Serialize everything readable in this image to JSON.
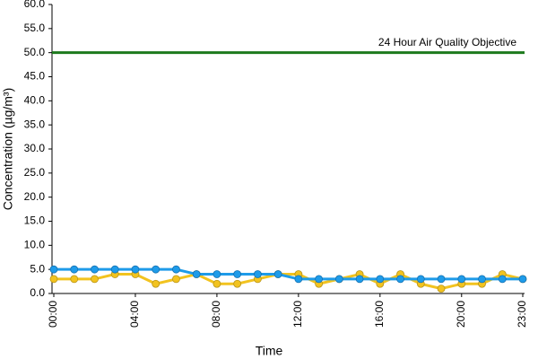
{
  "chart_data": {
    "type": "line",
    "xlabel": "Time",
    "ylabel": "Concentration (µg/m³)",
    "categories": [
      "00:00",
      null,
      null,
      null,
      "04:00",
      null,
      null,
      null,
      "08:00",
      null,
      null,
      null,
      "12:00",
      null,
      null,
      null,
      "16:00",
      null,
      null,
      null,
      "20:00",
      null,
      null,
      "23:00"
    ],
    "series": [
      {
        "color": "#f2c31f",
        "values": [
          3,
          3,
          3,
          4,
          4,
          2,
          3,
          4,
          2,
          2,
          3,
          4,
          4,
          2,
          3,
          4,
          2,
          4,
          2,
          1,
          2,
          2,
          4,
          3
        ]
      },
      {
        "color": "#1e9be9",
        "values": [
          5,
          5,
          5,
          5,
          5,
          5,
          5,
          4,
          4,
          4,
          4,
          4,
          3,
          3,
          3,
          3,
          3,
          3,
          3,
          3,
          3,
          3,
          3,
          3
        ]
      }
    ],
    "objective": {
      "value": 50,
      "label": "24 Hour Air Quality Objective",
      "color": "#1d7a1d"
    },
    "ylim": [
      0,
      60
    ],
    "yticks": [
      {
        "value": 0,
        "label": "0.0"
      },
      {
        "value": 5,
        "label": "5.0"
      },
      {
        "value": 10,
        "label": "10.0"
      },
      {
        "value": 15,
        "label": "15.0"
      },
      {
        "value": 20,
        "label": "20.0"
      },
      {
        "value": 25,
        "label": "25.0"
      },
      {
        "value": 30,
        "label": "30.0"
      },
      {
        "value": 35,
        "label": "35.0"
      },
      {
        "value": 40,
        "label": "40.0"
      },
      {
        "value": 45,
        "label": "45.0"
      },
      {
        "value": 50,
        "label": "50.0"
      },
      {
        "value": 55,
        "label": "55.0"
      },
      {
        "value": 60,
        "label": "60.0"
      }
    ]
  }
}
